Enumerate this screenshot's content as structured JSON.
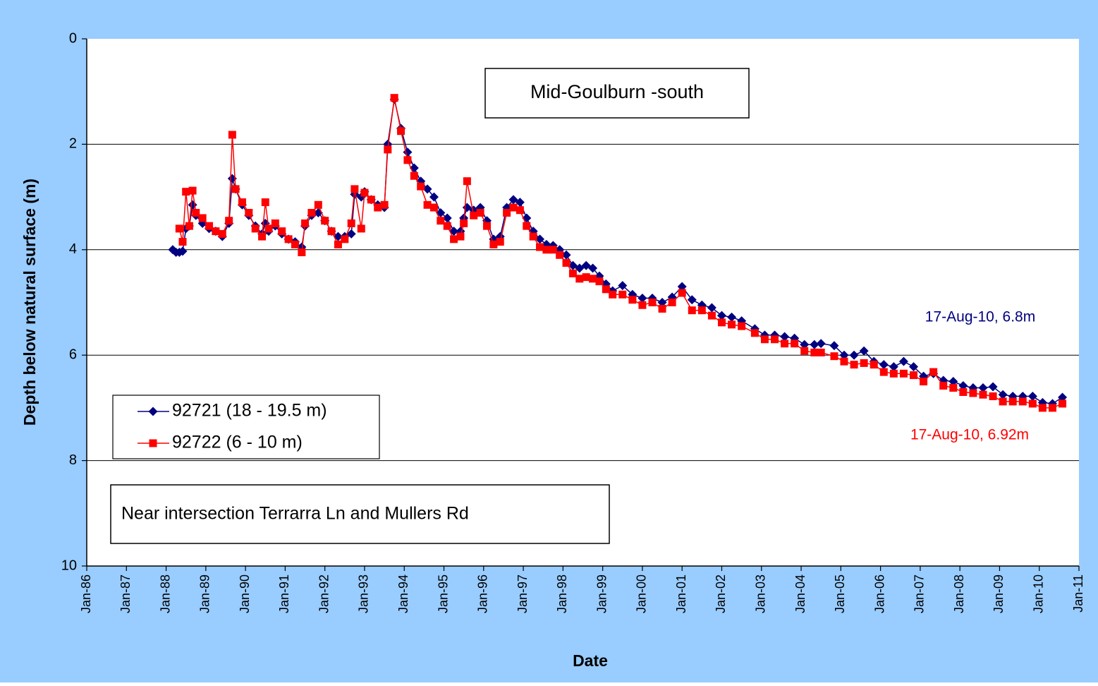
{
  "chart_data": {
    "type": "line",
    "title": "Mid-Goulburn -south",
    "subtitle": "Near intersection Terrarra Ln and Mullers Rd",
    "x_label": "Date",
    "y_label": "Depth below natural surface (m)",
    "invert_y": true,
    "grid": true,
    "legend": "left",
    "ylim": [
      0,
      10
    ],
    "yticks": [
      0,
      2,
      4,
      6,
      8,
      10
    ],
    "xlim": [
      "1986-01",
      "2011-01"
    ],
    "xticks": [
      {
        "value": "1986-01",
        "label": "Jan-86"
      },
      {
        "value": "1987-01",
        "label": "Jan-87"
      },
      {
        "value": "1988-01",
        "label": "Jan-88"
      },
      {
        "value": "1989-01",
        "label": "Jan-89"
      },
      {
        "value": "1990-01",
        "label": "Jan-90"
      },
      {
        "value": "1991-01",
        "label": "Jan-91"
      },
      {
        "value": "1992-01",
        "label": "Jan-92"
      },
      {
        "value": "1993-01",
        "label": "Jan-93"
      },
      {
        "value": "1994-01",
        "label": "Jan-94"
      },
      {
        "value": "1995-01",
        "label": "Jan-95"
      },
      {
        "value": "1996-01",
        "label": "Jan-96"
      },
      {
        "value": "1997-01",
        "label": "Jan-97"
      },
      {
        "value": "1998-01",
        "label": "Jan-98"
      },
      {
        "value": "1999-01",
        "label": "Jan-99"
      },
      {
        "value": "2000-01",
        "label": "Jan-00"
      },
      {
        "value": "2001-01",
        "label": "Jan-01"
      },
      {
        "value": "2002-01",
        "label": "Jan-02"
      },
      {
        "value": "2003-01",
        "label": "Jan-03"
      },
      {
        "value": "2004-01",
        "label": "Jan-04"
      },
      {
        "value": "2005-01",
        "label": "Jan-05"
      },
      {
        "value": "2006-01",
        "label": "Jan-06"
      },
      {
        "value": "2007-01",
        "label": "Jan-07"
      },
      {
        "value": "2008-01",
        "label": "Jan-08"
      },
      {
        "value": "2009-01",
        "label": "Jan-09"
      },
      {
        "value": "2010-01",
        "label": "Jan-10"
      },
      {
        "value": "2011-01",
        "label": "Jan-11"
      }
    ],
    "x": [
      "1988-03",
      "1988-04",
      "1988-05",
      "1988-06",
      "1988-07",
      "1988-08",
      "1988-09",
      "1988-10",
      "1988-12",
      "1989-02",
      "1989-04",
      "1989-06",
      "1989-08",
      "1989-09",
      "1989-10",
      "1989-12",
      "1990-02",
      "1990-04",
      "1990-06",
      "1990-07",
      "1990-08",
      "1990-10",
      "1990-12",
      "1991-02",
      "1991-04",
      "1991-06",
      "1991-07",
      "1991-09",
      "1991-11",
      "1992-01",
      "1992-03",
      "1992-05",
      "1992-07",
      "1992-09",
      "1992-10",
      "1992-12",
      "1993-01",
      "1993-03",
      "1993-05",
      "1993-07",
      "1993-08",
      "1993-10",
      "1993-12",
      "1994-02",
      "1994-04",
      "1994-06",
      "1994-08",
      "1994-10",
      "1994-12",
      "1995-02",
      "1995-04",
      "1995-06",
      "1995-07",
      "1995-08",
      "1995-10",
      "1995-12",
      "1996-02",
      "1996-04",
      "1996-06",
      "1996-08",
      "1996-10",
      "1996-12",
      "1997-02",
      "1997-04",
      "1997-06",
      "1997-08",
      "1997-10",
      "1997-12",
      "1998-02",
      "1998-04",
      "1998-06",
      "1998-08",
      "1998-10",
      "1998-12",
      "1999-02",
      "1999-04",
      "1999-07",
      "1999-10",
      "2000-01",
      "2000-04",
      "2000-07",
      "2000-10",
      "2001-01",
      "2001-04",
      "2001-07",
      "2001-10",
      "2002-01",
      "2002-04",
      "2002-07",
      "2002-11",
      "2003-02",
      "2003-05",
      "2003-08",
      "2003-11",
      "2004-02",
      "2004-05",
      "2004-07",
      "2004-11",
      "2005-02",
      "2005-05",
      "2005-08",
      "2005-11",
      "2006-02",
      "2006-05",
      "2006-08",
      "2006-11",
      "2007-02",
      "2007-05",
      "2007-08",
      "2007-11",
      "2008-02",
      "2008-05",
      "2008-08",
      "2008-11",
      "2009-02",
      "2009-05",
      "2009-08",
      "2009-11",
      "2010-02",
      "2010-05",
      "2010-08"
    ],
    "series": [
      {
        "name": "92721 (18 - 19.5 m)",
        "color": "#000080",
        "marker": "diamond",
        "values": [
          4.0,
          4.05,
          4.05,
          4.03,
          3.6,
          3.55,
          3.15,
          3.35,
          3.5,
          3.6,
          3.65,
          3.75,
          3.5,
          2.65,
          2.85,
          3.15,
          3.35,
          3.55,
          3.7,
          3.5,
          3.65,
          3.55,
          3.7,
          3.8,
          3.85,
          3.95,
          3.55,
          3.35,
          3.3,
          3.45,
          3.65,
          3.75,
          3.75,
          3.7,
          2.95,
          3.0,
          2.9,
          3.05,
          3.15,
          3.2,
          2.0,
          1.15,
          1.7,
          2.15,
          2.45,
          2.7,
          2.85,
          3.0,
          3.3,
          3.4,
          3.65,
          3.65,
          3.4,
          3.2,
          3.25,
          3.2,
          3.45,
          3.8,
          3.75,
          3.2,
          3.05,
          3.1,
          3.4,
          3.65,
          3.8,
          3.9,
          3.92,
          4.0,
          4.1,
          4.3,
          4.35,
          4.3,
          4.35,
          4.5,
          4.65,
          4.78,
          4.68,
          4.85,
          4.92,
          4.92,
          5.0,
          4.9,
          4.7,
          4.95,
          5.05,
          5.1,
          5.25,
          5.28,
          5.35,
          5.5,
          5.62,
          5.62,
          5.65,
          5.68,
          5.8,
          5.8,
          5.78,
          5.82,
          6.0,
          6.0,
          5.92,
          6.12,
          6.18,
          6.22,
          6.12,
          6.22,
          6.4,
          6.35,
          6.48,
          6.5,
          6.58,
          6.62,
          6.62,
          6.6,
          6.75,
          6.78,
          6.78,
          6.78,
          6.9,
          6.92,
          6.8
        ]
      },
      {
        "name": "92722 (6 - 10 m)",
        "color": "#ff0000",
        "marker": "square",
        "values": [
          null,
          null,
          3.6,
          3.85,
          2.9,
          3.55,
          2.88,
          3.3,
          3.4,
          3.55,
          3.65,
          3.7,
          3.45,
          1.82,
          2.85,
          3.1,
          3.3,
          3.6,
          3.75,
          3.1,
          3.6,
          3.5,
          3.65,
          3.8,
          3.9,
          4.05,
          3.5,
          3.3,
          3.15,
          3.45,
          3.65,
          3.9,
          3.8,
          3.5,
          2.85,
          3.6,
          2.92,
          3.05,
          3.2,
          3.15,
          2.1,
          1.12,
          1.75,
          2.3,
          2.6,
          2.8,
          3.15,
          3.2,
          3.45,
          3.55,
          3.8,
          3.75,
          3.5,
          2.7,
          3.35,
          3.3,
          3.55,
          3.9,
          3.85,
          3.3,
          3.2,
          3.25,
          3.55,
          3.75,
          3.95,
          4.0,
          4.0,
          4.1,
          4.25,
          4.45,
          4.55,
          4.52,
          4.55,
          4.6,
          4.75,
          4.85,
          4.85,
          4.95,
          5.05,
          5.0,
          5.12,
          5.0,
          4.82,
          5.15,
          5.15,
          5.25,
          5.38,
          5.42,
          5.45,
          5.58,
          5.7,
          5.7,
          5.78,
          5.78,
          5.92,
          5.95,
          5.95,
          6.02,
          6.12,
          6.18,
          6.15,
          6.18,
          6.32,
          6.35,
          6.35,
          6.38,
          6.5,
          6.32,
          6.58,
          6.62,
          6.7,
          6.72,
          6.75,
          6.78,
          6.88,
          6.88,
          6.88,
          6.92,
          7.0,
          7.0,
          6.92
        ]
      }
    ],
    "annotations": [
      {
        "text": "17-Aug-10, 6.8m",
        "color": "#000080"
      },
      {
        "text": "17-Aug-10, 6.92m",
        "color": "#ff0000"
      }
    ]
  }
}
